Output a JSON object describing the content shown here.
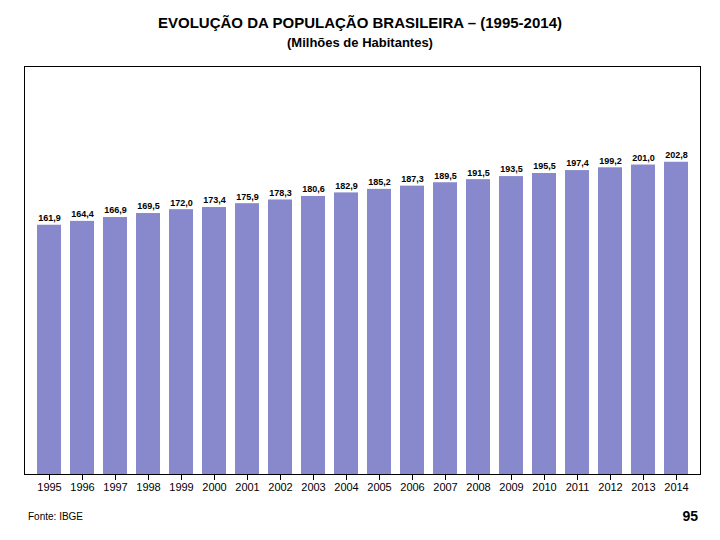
{
  "chart_data": {
    "type": "bar",
    "title": "EVOLUÇÃO DA POPULAÇÃO BRASILEIRA – (1995-2014)",
    "subtitle": "(Milhões de Habitantes)",
    "annotations": [
      "Fonte: IBGE",
      "95"
    ],
    "categories": [
      "1995",
      "1996",
      "1997",
      "1998",
      "1999",
      "2000",
      "2001",
      "2002",
      "2003",
      "2004",
      "2005",
      "2006",
      "2007",
      "2008",
      "2009",
      "2010",
      "2011",
      "2012",
      "2013",
      "2014"
    ],
    "values": [
      161.9,
      164.4,
      166.9,
      169.5,
      172.0,
      173.4,
      175.9,
      178.3,
      180.6,
      182.9,
      185.2,
      187.3,
      189.5,
      191.5,
      193.5,
      195.5,
      197.4,
      199.2,
      201.0,
      202.8
    ],
    "value_labels": [
      "161,9",
      "164,4",
      "166,9",
      "169,5",
      "172,0",
      "173,4",
      "175,9",
      "178,3",
      "180,6",
      "182,9",
      "185,2",
      "187,3",
      "189,5",
      "191,5",
      "193,5",
      "195,5",
      "197,4",
      "199,2",
      "201,0",
      "202,8"
    ],
    "data_labels": true,
    "color": "#8888cc",
    "ylim": [
      0,
      265
    ],
    "tick_labels": "x",
    "grid": false
  }
}
